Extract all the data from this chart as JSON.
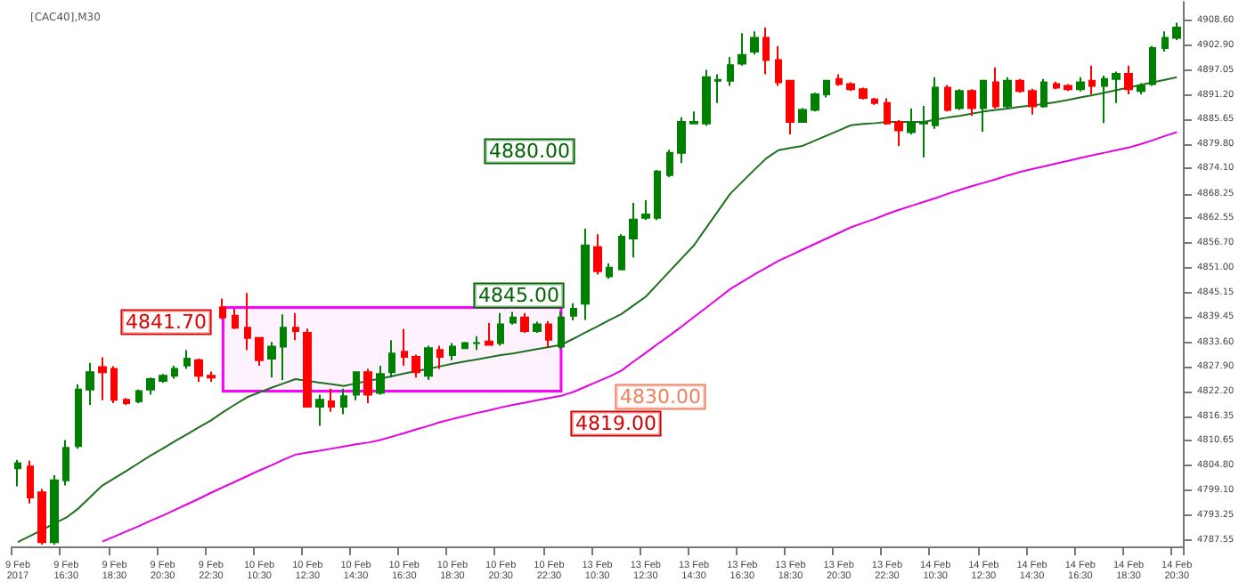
{
  "chart_data": {
    "type": "candlestick",
    "title": "[CAC40],M30",
    "categories": [
      "9 Feb 2017",
      null,
      null,
      null,
      "9 Feb 16:30",
      null,
      null,
      null,
      "9 Feb 18:30",
      null,
      null,
      null,
      "9 Feb 20:30",
      null,
      null,
      null,
      "9 Feb 22:30",
      null,
      null,
      null,
      "10 Feb 10:30",
      null,
      null,
      null,
      "10 Feb 12:30",
      null,
      null,
      null,
      "10 Feb 14:30",
      null,
      null,
      null,
      "10 Feb 16:30",
      null,
      null,
      null,
      "10 Feb 18:30",
      null,
      null,
      null,
      "10 Feb 20:30",
      null,
      null,
      null,
      "10 Feb 22:30",
      null,
      null,
      null,
      "13 Feb 10:30",
      null,
      null,
      null,
      "13 Feb 12:30",
      null,
      null,
      null,
      "13 Feb 14:30",
      null,
      null,
      null,
      "13 Feb 16:30",
      null,
      null,
      null,
      "13 Feb 18:30",
      null,
      null,
      null,
      "13 Feb 20:30",
      null,
      null,
      null,
      "13 Feb 22:30",
      null,
      null,
      null,
      "14 Feb 10:30",
      null,
      null,
      null,
      "14 Feb 12:30",
      null,
      null,
      null,
      "14 Feb 14:30",
      null,
      null,
      null,
      "14 Feb 16:30",
      null,
      null,
      null,
      "14 Feb 18:30",
      null,
      null,
      null,
      "14 Feb 20:30"
    ],
    "ohlc": [
      [
        4804.2,
        4806.2,
        4800.0,
        4805.4
      ],
      [
        4804.6,
        4806.0,
        4796.0,
        4797.4
      ],
      [
        4798.6,
        4799.4,
        4786.4,
        4787.0
      ],
      [
        4787.0,
        4802.6,
        4786.4,
        4801.4
      ],
      [
        4801.4,
        4810.8,
        4800.2,
        4809.0
      ],
      [
        4809.4,
        4823.8,
        4808.8,
        4822.6
      ],
      [
        4822.6,
        4828.8,
        4819.0,
        4826.6
      ],
      [
        4827.8,
        4830.1,
        4820.1,
        4826.6
      ],
      [
        4827.4,
        4828.0,
        4819.4,
        4820.2
      ],
      [
        4820.2,
        4820.6,
        4819.0,
        4819.4
      ],
      [
        4819.8,
        4822.6,
        4819.4,
        4822.2
      ],
      [
        4822.6,
        4825.4,
        4821.4,
        4825.0
      ],
      [
        4824.6,
        4826.2,
        4824.2,
        4825.8
      ],
      [
        4825.8,
        4828.1,
        4825.1,
        4827.4
      ],
      [
        4828.2,
        4831.8,
        4827.4,
        4829.8
      ],
      [
        4829.4,
        4829.8,
        4824.4,
        4825.8
      ],
      [
        4825.8,
        4826.8,
        4824.4,
        4825.4
      ],
      [
        4841.7,
        4843.8,
        4839.0,
        4839.4
      ],
      [
        4839.8,
        4841.4,
        4836.7,
        4837.0
      ],
      [
        4837.0,
        4845.1,
        4831.8,
        4834.6
      ],
      [
        4834.6,
        4834.7,
        4828.1,
        4829.4
      ],
      [
        4829.8,
        4833.7,
        4825.4,
        4832.6
      ],
      [
        4832.6,
        4840.1,
        4824.8,
        4837.0
      ],
      [
        4837.0,
        4840.4,
        4834.1,
        4836.2
      ],
      [
        4835.8,
        4836.8,
        4818.4,
        4818.6
      ],
      [
        4818.6,
        4821.4,
        4814.1,
        4820.2
      ],
      [
        4819.8,
        4822.8,
        4817.4,
        4818.6
      ],
      [
        4818.6,
        4822.8,
        4816.8,
        4821.0
      ],
      [
        4821.4,
        4826.8,
        4820.1,
        4826.6
      ],
      [
        4826.6,
        4827.4,
        4819.4,
        4821.4
      ],
      [
        4821.8,
        4828.1,
        4821.4,
        4826.2
      ],
      [
        4826.6,
        4834.1,
        4825.4,
        4831.0
      ],
      [
        4831.4,
        4836.7,
        4828.1,
        4830.2
      ],
      [
        4830.2,
        4830.7,
        4825.4,
        4826.6
      ],
      [
        4825.8,
        4832.8,
        4824.8,
        4832.2
      ],
      [
        4831.8,
        4832.8,
        4827.4,
        4830.2
      ],
      [
        4830.6,
        4833.4,
        4829.4,
        4832.6
      ],
      [
        4832.2,
        4833.7,
        4832.1,
        4833.4
      ],
      [
        4833.4,
        4835.0,
        4831.8,
        4833.4
      ],
      [
        4833.8,
        4838.1,
        4832.8,
        4833.0
      ],
      [
        4833.4,
        4840.4,
        4832.8,
        4837.8
      ],
      [
        4838.2,
        4840.7,
        4837.7,
        4839.4
      ],
      [
        4839.4,
        4840.4,
        4835.8,
        4836.2
      ],
      [
        4836.2,
        4838.4,
        4835.8,
        4837.8
      ],
      [
        4837.8,
        4838.5,
        4832.4,
        4834.2
      ],
      [
        4832.6,
        4840.8,
        4832.0,
        4839.4
      ],
      [
        4839.8,
        4842.7,
        4838.7,
        4841.4
      ],
      [
        4842.6,
        4860.1,
        4838.8,
        4856.2
      ],
      [
        4855.8,
        4858.8,
        4849.4,
        4850.2
      ],
      [
        4849.0,
        4852.0,
        4848.4,
        4851.0
      ],
      [
        4850.6,
        4858.8,
        4850.4,
        4858.2
      ],
      [
        4857.8,
        4866.1,
        4853.4,
        4862.2
      ],
      [
        4862.6,
        4866.7,
        4862.1,
        4863.4
      ],
      [
        4862.6,
        4873.8,
        4862.1,
        4873.4
      ],
      [
        4872.6,
        4878.5,
        4872.1,
        4877.8
      ],
      [
        4877.8,
        4886.1,
        4875.4,
        4885.0
      ],
      [
        4884.6,
        4887.4,
        4884.4,
        4885.0
      ],
      [
        4884.6,
        4897.1,
        4884.1,
        4895.4
      ],
      [
        4894.6,
        4896.1,
        4889.4,
        4894.8
      ],
      [
        4894.6,
        4900.1,
        4893.4,
        4898.2
      ],
      [
        4898.6,
        4905.7,
        4898.1,
        4900.6
      ],
      [
        4901.4,
        4906.1,
        4900.7,
        4904.6
      ],
      [
        4904.6,
        4907.0,
        4896.1,
        4899.4
      ],
      [
        4899.4,
        4902.7,
        4893.4,
        4894.2
      ],
      [
        4894.6,
        4894.7,
        4882.1,
        4885.0
      ],
      [
        4885.0,
        4888.2,
        4884.8,
        4887.8
      ],
      [
        4887.8,
        4891.8,
        4887.4,
        4891.4
      ],
      [
        4891.4,
        4894.8,
        4890.7,
        4894.6
      ],
      [
        4895.0,
        4896.1,
        4893.4,
        4893.8
      ],
      [
        4893.8,
        4894.2,
        4892.2,
        4892.6
      ],
      [
        4892.6,
        4893.0,
        4890.2,
        4890.6
      ],
      [
        4890.2,
        4890.6,
        4889.0,
        4889.4
      ],
      [
        4889.4,
        4890.5,
        4884.3,
        4884.6
      ],
      [
        4885.0,
        4885.4,
        4879.4,
        4883.0
      ],
      [
        4882.6,
        4888.1,
        4882.1,
        4884.6
      ],
      [
        4884.6,
        4888.7,
        4876.7,
        4884.8
      ],
      [
        4884.2,
        4895.4,
        4883.4,
        4893.0
      ],
      [
        4893.0,
        4893.6,
        4887.4,
        4887.8
      ],
      [
        4888.2,
        4892.6,
        4887.8,
        4892.2
      ],
      [
        4892.2,
        4892.6,
        4886.4,
        4888.2
      ],
      [
        4888.2,
        4894.7,
        4882.7,
        4894.6
      ],
      [
        4894.2,
        4897.7,
        4888.1,
        4888.6
      ],
      [
        4888.6,
        4895.4,
        4888.1,
        4894.6
      ],
      [
        4894.6,
        4895.0,
        4891.8,
        4892.2
      ],
      [
        4892.2,
        4892.7,
        4886.7,
        4888.6
      ],
      [
        4888.6,
        4895.0,
        4888.3,
        4894.2
      ],
      [
        4893.8,
        4894.4,
        4892.6,
        4893.0
      ],
      [
        4893.4,
        4893.8,
        4892.2,
        4892.6
      ],
      [
        4892.6,
        4895.4,
        4892.1,
        4894.2
      ],
      [
        4894.6,
        4898.1,
        4891.4,
        4893.4
      ],
      [
        4893.4,
        4895.8,
        4884.7,
        4895.0
      ],
      [
        4895.0,
        4896.7,
        4889.4,
        4896.2
      ],
      [
        4896.2,
        4898.1,
        4891.4,
        4892.6
      ],
      [
        4892.2,
        4894.0,
        4891.4,
        4893.4
      ],
      [
        4893.8,
        4902.7,
        4893.4,
        4902.2
      ],
      [
        4902.2,
        4906.1,
        4901.4,
        4904.6
      ],
      [
        4904.6,
        4908.1,
        4904.1,
        4907.0
      ]
    ],
    "colors": [
      "#008000",
      "#ff0000",
      "#ff0000",
      "#008000",
      "#008000",
      "#008000",
      "#008000",
      "#ff0000",
      "#ff0000",
      "#ff0000",
      "#008000",
      "#008000",
      "#008000",
      "#008000",
      "#008000",
      "#ff0000",
      "#ff0000",
      "#ff0000",
      "#ff0000",
      "#ff0000",
      "#ff0000",
      "#008000",
      "#008000",
      "#ff0000",
      "#ff0000",
      "#008000",
      "#ff0000",
      "#008000",
      "#008000",
      "#ff0000",
      "#008000",
      "#008000",
      "#ff0000",
      "#ff0000",
      "#008000",
      "#ff0000",
      "#008000",
      "#008000",
      "#008000",
      "#ff0000",
      "#008000",
      "#008000",
      "#ff0000",
      "#008000",
      "#ff0000",
      "#008000",
      "#008000",
      "#008000",
      "#ff0000",
      "#008000",
      "#008000",
      "#008000",
      "#008000",
      "#008000",
      "#008000",
      "#008000",
      "#008000",
      "#008000",
      "#008000",
      "#008000",
      "#008000",
      "#008000",
      "#ff0000",
      "#ff0000",
      "#ff0000",
      "#008000",
      "#008000",
      "#008000",
      "#ff0000",
      "#ff0000",
      "#ff0000",
      "#ff0000",
      "#ff0000",
      "#ff0000",
      "#008000",
      "#008000",
      "#008000",
      "#ff0000",
      "#008000",
      "#ff0000",
      "#008000",
      "#ff0000",
      "#008000",
      "#ff0000",
      "#ff0000",
      "#008000",
      "#ff0000",
      "#ff0000",
      "#008000",
      "#ff0000",
      "#008000",
      "#008000",
      "#ff0000",
      "#008000",
      "#008000",
      "#008000",
      "#008000"
    ],
    "series": [
      {
        "type": "line",
        "color": "#1f6f1f",
        "values": [
          4787.0,
          4788.4,
          4789.8,
          4791.3,
          4792.7,
          4794.8,
          4797.5,
          4800.2,
          4801.9,
          4803.6,
          4805.4,
          4807.2,
          4808.8,
          4810.5,
          4812.1,
          4813.8,
          4815.4,
          4817.3,
          4819.1,
          4820.8,
          4821.9,
          4823.0,
          4824.0,
          4825.0,
          4824.6,
          4824.2,
          4823.8,
          4823.4,
          4824.0,
          4824.6,
          4825.1,
          4825.7,
          4826.3,
          4826.9,
          4827.4,
          4828.0,
          4828.6,
          4829.1,
          4829.6,
          4830.1,
          4830.6,
          4831.0,
          4831.5,
          4832.0,
          4832.5,
          4833.0,
          4834.4,
          4835.9,
          4837.3,
          4838.8,
          4840.2,
          4842.2,
          4844.2,
          4847.2,
          4850.2,
          4853.2,
          4856.2,
          4860.2,
          4864.2,
          4868.2,
          4871.0,
          4873.8,
          4876.5,
          4878.4,
          4878.9,
          4879.4,
          4880.6,
          4881.8,
          4883.0,
          4884.2,
          4884.5,
          4884.7,
          4885.0,
          4885.0,
          4885.0,
          4885.0,
          4885.5,
          4886.0,
          4886.4,
          4886.9,
          4887.4,
          4887.8,
          4888.1,
          4888.5,
          4888.8,
          4889.2,
          4889.6,
          4890.1,
          4890.7,
          4891.2,
          4891.8,
          4892.4,
          4893.0,
          4893.6,
          4894.2,
          4894.8,
          4895.4
        ]
      },
      {
        "type": "line",
        "color": "#e600e6",
        "values": [
          null,
          null,
          null,
          null,
          null,
          null,
          null,
          4787.1,
          4788.3,
          4789.5,
          4790.7,
          4792.0,
          4793.2,
          4794.5,
          4795.8,
          4797.1,
          4798.5,
          4799.8,
          4801.1,
          4802.4,
          4803.7,
          4804.9,
          4806.2,
          4807.4,
          4807.9,
          4808.3,
          4808.8,
          4809.3,
          4809.8,
          4810.2,
          4810.8,
          4811.6,
          4812.4,
          4813.3,
          4814.1,
          4815.0,
          4815.7,
          4816.4,
          4817.1,
          4817.7,
          4818.4,
          4819.0,
          4819.5,
          4820.1,
          4820.6,
          4821.1,
          4822.0,
          4823.2,
          4824.4,
          4825.6,
          4827.0,
          4829.1,
          4831.1,
          4833.2,
          4835.2,
          4837.3,
          4839.5,
          4841.6,
          4843.8,
          4846.0,
          4847.7,
          4849.4,
          4851.0,
          4852.6,
          4853.9,
          4855.2,
          4856.5,
          4857.8,
          4859.1,
          4860.4,
          4861.4,
          4862.4,
          4863.5,
          4864.5,
          4865.4,
          4866.3,
          4867.2,
          4868.2,
          4869.1,
          4870.0,
          4870.8,
          4871.6,
          4872.5,
          4873.3,
          4874.0,
          4874.6,
          4875.3,
          4875.9,
          4876.6,
          4877.2,
          4877.8,
          4878.4,
          4879.0,
          4879.8,
          4880.7,
          4881.7,
          4882.6
        ]
      }
    ],
    "bands": [
      {
        "axis": "y",
        "from": 4822.2,
        "to": 4841.7,
        "color": "#ff00ff"
      }
    ],
    "annotations": [
      "4841.70",
      "4845.00",
      "4880.00",
      "4830.00",
      "4819.00"
    ],
    "ylim": [
      4786,
      4913
    ],
    "yticks": [
      {
        "value": 4908.6,
        "label": "4908.60"
      },
      {
        "value": 4902.9,
        "label": "4902.90"
      },
      {
        "value": 4897.05,
        "label": "4897.05"
      },
      {
        "value": 4891.2,
        "label": "4891.20"
      },
      {
        "value": 4885.65,
        "label": "4885.65"
      },
      {
        "value": 4879.8,
        "label": "4879.80"
      },
      {
        "value": 4874.1,
        "label": "4874.10"
      },
      {
        "value": 4868.25,
        "label": "4868.25"
      },
      {
        "value": 4862.55,
        "label": "4862.55"
      },
      {
        "value": 4856.7,
        "label": "4856.70"
      },
      {
        "value": 4851.0,
        "label": "4851.00"
      },
      {
        "value": 4845.15,
        "label": "4845.15"
      },
      {
        "value": 4839.45,
        "label": "4839.45"
      },
      {
        "value": 4833.6,
        "label": "4833.60"
      },
      {
        "value": 4827.9,
        "label": "4827.90"
      },
      {
        "value": 4822.2,
        "label": "4822.20"
      },
      {
        "value": 4816.35,
        "label": "4816.35"
      },
      {
        "value": 4810.65,
        "label": "4810.65"
      },
      {
        "value": 4804.8,
        "label": "4804.80"
      },
      {
        "value": 4799.1,
        "label": "4799.10"
      },
      {
        "value": 4793.25,
        "label": "4793.25"
      },
      {
        "value": 4787.55,
        "label": "4787.55"
      }
    ]
  }
}
